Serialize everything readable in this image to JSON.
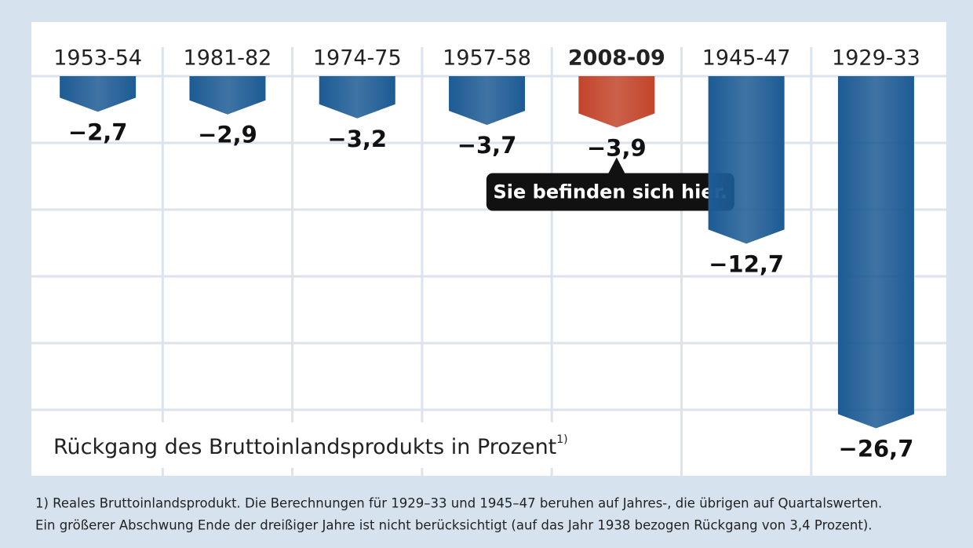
{
  "chart_data": {
    "type": "bar",
    "categories": [
      "1953-54",
      "1981-82",
      "1974-75",
      "1957-58",
      "2008-09",
      "1945-47",
      "1929-33"
    ],
    "values": [
      -2.7,
      -2.9,
      -3.2,
      -3.7,
      -3.9,
      -12.7,
      -26.7
    ],
    "value_labels": [
      "−2,7",
      "−2,9",
      "−3,2",
      "−3,7",
      "−3,9",
      "−12,7",
      "−26,7"
    ],
    "color": "#1d5b94",
    "colors": [
      "#1d5b94",
      "#1d5b94",
      "#1d5b94",
      "#1d5b94",
      "#c2452a",
      "#1d5b94",
      "#1d5b94"
    ],
    "ylim": [
      -28,
      0
    ],
    "grid": true,
    "axis_label": "Rückgang des Bruttoinlandsprodukts in Prozent",
    "axis_label_note": "1)",
    "annotation": "Sie befinden sich hier.",
    "footnotes": [
      "1) Reales Bruttoinlandsprodukt. Die Berechnungen für 1929–33 und 1945–47 beruhen auf Jahres-, die übrigen auf Quartalswerten.",
      "Ein größerer Abschwung Ende der dreißiger Jahre ist nicht berücksichtigt (auf das Jahr 1938 bezogen Rückgang von 3,4 Prozent)."
    ]
  }
}
